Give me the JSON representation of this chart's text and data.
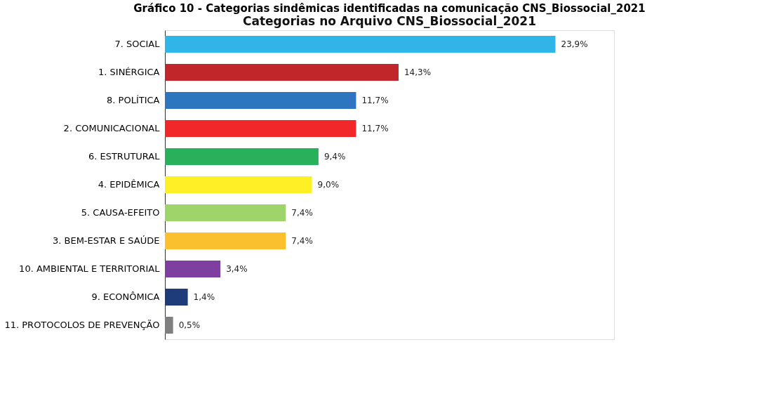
{
  "chart_data": {
    "type": "bar",
    "orientation": "horizontal",
    "title": "Gráfico 10 - Categorias sindêmicas identificadas na comunicação CNS_Biossocial_2021",
    "subtitle": "Categorias no Arquivo CNS_Biossocial_2021",
    "categories": [
      "7. SOCIAL",
      "1. SINÉRGICA",
      "8. POLÍTICA",
      "2. COMUNICACIONAL",
      "6. ESTRUTURAL",
      "4. EPIDÊMICA",
      "5. CAUSA-EFEITO",
      "3. BEM-ESTAR E SAÚDE",
      "10. AMBIENTAL E TERRITORIAL",
      "9. ECONÔMICA",
      "11. PROTOCOLOS DE PREVENÇÃO"
    ],
    "values": [
      23.9,
      14.3,
      11.7,
      11.7,
      9.4,
      9.0,
      7.4,
      7.4,
      3.4,
      1.4,
      0.5
    ],
    "value_labels": [
      "23,9%",
      "14,3%",
      "11,7%",
      "11,7%",
      "9,4%",
      "9,0%",
      "7,4%",
      "7,4%",
      "3,4%",
      "1,4%",
      "0,5%"
    ],
    "colors": [
      "#2fb5e8",
      "#c0262c",
      "#2e75c0",
      "#f2272a",
      "#28b15a",
      "#fdf125",
      "#9fd46a",
      "#fbc02d",
      "#7f3fa0",
      "#1f3c7a",
      "#7f7f7f"
    ]
  }
}
